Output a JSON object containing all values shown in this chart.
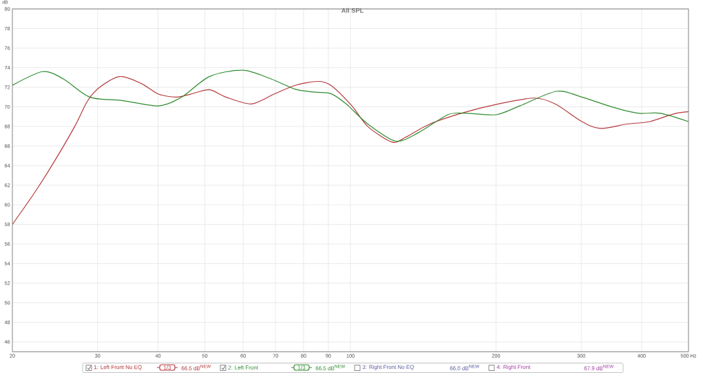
{
  "chart_data": {
    "type": "line",
    "title": "All SPL",
    "ylabel": "dB",
    "log": "x",
    "grid": true,
    "legend": "bottom",
    "xlim": [
      20,
      500
    ],
    "ylim": [
      45,
      80
    ],
    "xticks": [
      20,
      30,
      40,
      50,
      60,
      70,
      80,
      90,
      100,
      200,
      300,
      400,
      {
        "value": 500,
        "label": "500 Hz"
      }
    ],
    "yticks": [
      46,
      48,
      50,
      52,
      54,
      56,
      58,
      60,
      62,
      64,
      66,
      68,
      70,
      72,
      74,
      76,
      78,
      80
    ],
    "series": [
      {
        "name": "1: Left Front No EQ",
        "color": "#b5373a",
        "x": [
          20,
          22.2,
          24.4,
          26.9,
          28.6,
          30.3,
          33.4,
          36.9,
          40.1,
          43.7,
          46.7,
          51.1,
          55.3,
          62.4,
          69.5,
          76.9,
          85.5,
          91.1,
          100.7,
          108.6,
          122,
          130,
          146,
          171,
          202,
          240,
          265,
          301,
          328,
          374,
          416,
          467,
          500
        ],
        "values": [
          58.0,
          61.2,
          64.4,
          68.0,
          70.6,
          72.0,
          73.1,
          72.4,
          71.3,
          71.0,
          71.3,
          71.75,
          71.0,
          70.3,
          71.3,
          72.2,
          72.6,
          72.2,
          70.1,
          68.0,
          66.4,
          66.9,
          68.25,
          69.4,
          70.3,
          70.9,
          70.3,
          68.5,
          67.8,
          68.25,
          68.5,
          69.3,
          69.5
        ]
      },
      {
        "name": "2: Left Front",
        "color": "#2e8b2e",
        "x": [
          20,
          23.1,
          25.5,
          28.9,
          33.7,
          40.1,
          44.8,
          51.1,
          59.9,
          68.6,
          76.9,
          84.5,
          91.1,
          98,
          108.6,
          124,
          138,
          159,
          173,
          200,
          224,
          267,
          301,
          347,
          394,
          437,
          500
        ],
        "values": [
          72.2,
          73.6,
          72.85,
          71.0,
          70.65,
          70.1,
          71.0,
          73.1,
          73.75,
          72.85,
          71.8,
          71.5,
          71.35,
          70.3,
          68.25,
          66.5,
          67.35,
          69.2,
          69.35,
          69.2,
          70.1,
          71.6,
          71.0,
          70.0,
          69.35,
          69.35,
          68.5
        ]
      }
    ],
    "annotations": [
      "1/3",
      "66.5 dB$^{NEW}$",
      "1/3",
      "66.5 dB$^{NEW}$",
      "3: Right Front No EQ",
      "66.0 dB$^{NEW}$",
      "4: Right Front",
      "67.9 dB$^{NEW}$"
    ]
  }
}
